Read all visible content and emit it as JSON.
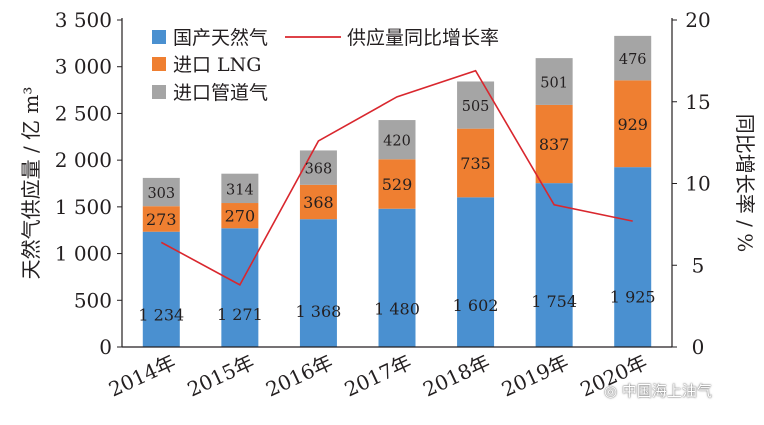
{
  "chart_data": {
    "type": "bar",
    "stacked": true,
    "categories": [
      "2014年",
      "2015年",
      "2016年",
      "2017年",
      "2018年",
      "2019年",
      "2020年"
    ],
    "series": [
      {
        "name": "国产天然气",
        "type": "bar",
        "axis": "left",
        "color": "#4a90d0",
        "values": [
          1234,
          1271,
          1368,
          1480,
          1602,
          1754,
          1925
        ],
        "labels": [
          "1 234",
          "1 271",
          "1 368",
          "1 480",
          "1 602",
          "1 754",
          "1 925"
        ]
      },
      {
        "name": "进口 LNG",
        "type": "bar",
        "axis": "left",
        "color": "#ef7f31",
        "values": [
          273,
          270,
          368,
          529,
          735,
          837,
          929
        ],
        "labels": [
          "273",
          "270",
          "368",
          "529",
          "735",
          "837",
          "929"
        ]
      },
      {
        "name": "进口管道气",
        "type": "bar",
        "axis": "left",
        "color": "#a5a5a5",
        "values": [
          303,
          314,
          368,
          420,
          505,
          501,
          476
        ],
        "labels": [
          "303",
          "314",
          "368",
          "420",
          "505",
          "501",
          "476"
        ]
      },
      {
        "name": "供应量同比增长率",
        "type": "line",
        "axis": "right",
        "color": "#d9272e",
        "values": [
          6.4,
          3.8,
          12.6,
          15.3,
          16.9,
          8.7,
          7.7
        ]
      }
    ],
    "ylabel": "天然气供应量 / 亿 m³",
    "y2label": "同比增长率 / %",
    "ylim": [
      0,
      3500
    ],
    "y2lim": [
      0,
      20
    ],
    "yticks": [
      0,
      500,
      1000,
      1500,
      2000,
      2500,
      3000,
      3500
    ],
    "yticklabels": [
      "0",
      "500",
      "1 000",
      "1 500",
      "2 000",
      "2 500",
      "3 000",
      "3 500"
    ],
    "y2ticks": [
      0,
      5,
      10,
      15,
      20
    ],
    "y2ticklabels": [
      "0",
      "5",
      "10",
      "15",
      "20"
    ],
    "legend": "top-left",
    "grid": false
  },
  "watermark": {
    "text": "中国海上油气"
  }
}
